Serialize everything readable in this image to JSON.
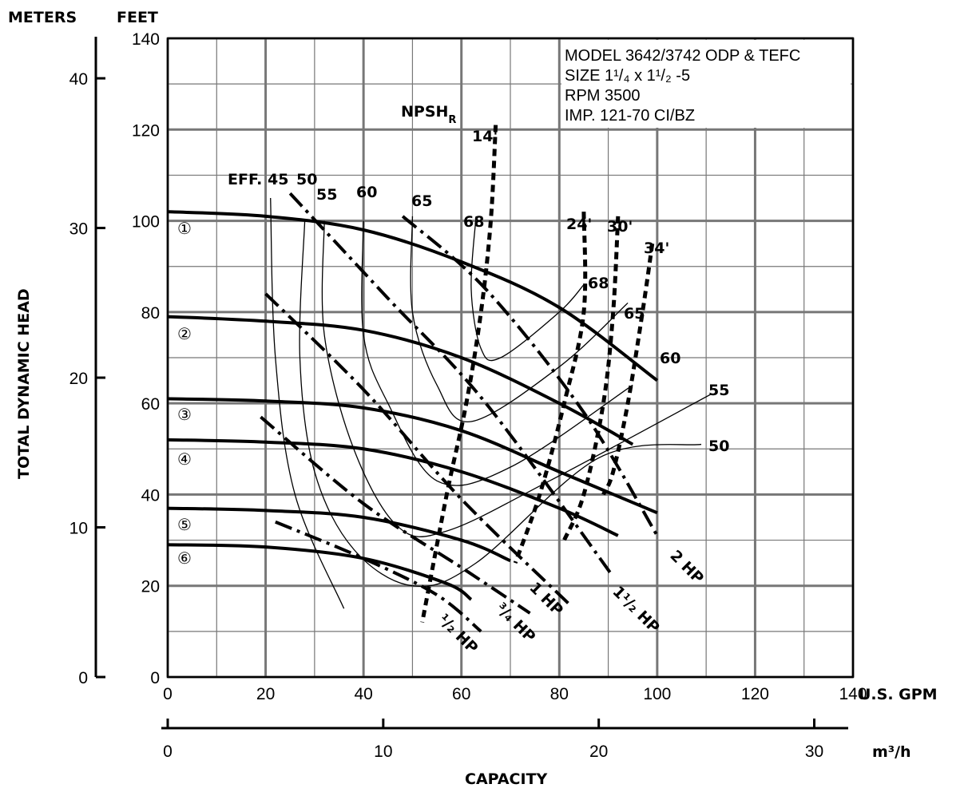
{
  "header": {
    "meters_label": "METERS",
    "feet_label": "FEET",
    "y_axis_title": "TOTAL DYNAMIC HEAD",
    "x_axis_title": "CAPACITY",
    "gpm_unit": "U.S. GPM",
    "m3h_unit": "m³/h"
  },
  "info_box": {
    "line1": "MODEL 3642/3742 ODP & TEFC",
    "line2": "SIZE 1¹/₄ x 1¹/₂ -5",
    "line3": "RPM 3500",
    "line4": "IMP. 121-70 CI/BZ"
  },
  "chart_data": {
    "type": "line",
    "title": "MODEL 3642/3742 ODP & TEFC",
    "xlabel": "CAPACITY",
    "ylabel": "TOTAL DYNAMIC HEAD",
    "x_unit": "U.S. GPM",
    "y_unit": "FEET",
    "xlim": [
      0,
      140
    ],
    "ylim": [
      0,
      140
    ],
    "grid": true,
    "x_ticks": [
      "0",
      "20",
      "40",
      "60",
      "80",
      "100",
      "120",
      "140"
    ],
    "y_ticks": [
      "0",
      "20",
      "40",
      "60",
      "80",
      "100",
      "120",
      "140"
    ],
    "meters_ticks": [
      "0",
      "10",
      "20",
      "30",
      "40"
    ],
    "m3h_ticks": [
      "0",
      "10",
      "20",
      "30"
    ],
    "impeller_curves": [
      {
        "name": "①",
        "x": [
          0,
          20,
          40,
          60,
          80,
          100
        ],
        "y": [
          102,
          101,
          98,
          91,
          81,
          65
        ]
      },
      {
        "name": "②",
        "x": [
          0,
          20,
          40,
          60,
          80,
          95
        ],
        "y": [
          79,
          78,
          76,
          70,
          60,
          51
        ]
      },
      {
        "name": "③",
        "x": [
          0,
          20,
          40,
          60,
          80,
          100
        ],
        "y": [
          61,
          60.5,
          59,
          54,
          45,
          36
        ]
      },
      {
        "name": "④",
        "x": [
          0,
          20,
          40,
          60,
          80,
          92
        ],
        "y": [
          52,
          51.5,
          50,
          45,
          37,
          31
        ]
      },
      {
        "name": "⑤",
        "x": [
          0,
          20,
          40,
          60,
          70
        ],
        "y": [
          37,
          36.5,
          35,
          30,
          25.5
        ]
      },
      {
        "name": "⑥",
        "x": [
          0,
          20,
          40,
          57,
          62
        ],
        "y": [
          29,
          28.5,
          26,
          20.5,
          17
        ]
      }
    ],
    "npshr_curves": [
      {
        "name": "14'",
        "x": [
          67,
          66,
          64,
          61,
          57,
          52
        ],
        "y": [
          121,
          100,
          80,
          60,
          40,
          12
        ]
      },
      {
        "name": "24'",
        "x": [
          85,
          85,
          81,
          76,
          71
        ],
        "y": [
          102,
          80,
          60,
          40,
          25
        ]
      },
      {
        "name": "30'",
        "x": [
          92,
          91,
          89,
          85,
          81
        ],
        "y": [
          101,
          80,
          60,
          40,
          30
        ]
      },
      {
        "name": "34'",
        "x": [
          99,
          97,
          94,
          91,
          89
        ],
        "y": [
          95,
          80,
          60,
          45,
          40
        ]
      }
    ],
    "hp_curves": [
      {
        "name": "1/2 HP",
        "x": [
          22,
          40,
          55,
          64
        ],
        "y": [
          34,
          26,
          18,
          10
        ]
      },
      {
        "name": "3/4 HP",
        "x": [
          19,
          40,
          60,
          74
        ],
        "y": [
          57,
          38,
          24,
          14
        ]
      },
      {
        "name": "1 HP",
        "x": [
          20,
          40,
          60,
          82
        ],
        "y": [
          84,
          63,
          39,
          16
        ]
      },
      {
        "name": "1 1/2 HP",
        "x": [
          25,
          45,
          65,
          91
        ],
        "y": [
          106,
          83,
          60,
          22
        ]
      },
      {
        "name": "2 HP",
        "x": [
          48,
          65,
          85,
          100
        ],
        "y": [
          101,
          85,
          58,
          31
        ]
      }
    ],
    "efficiency_labels": [
      "EFF. 45",
      "50",
      "55",
      "60",
      "65",
      "68",
      "68",
      "65",
      "60",
      "55",
      "50"
    ],
    "npsh_label": "NPSH",
    "npsh_sub": "R",
    "impeller_labels": [
      "①",
      "②",
      "③",
      "④",
      "⑤",
      "⑥"
    ],
    "npsh_value_labels": [
      "14'",
      "24'",
      "30'",
      "34'"
    ],
    "hp_labels": [
      "¹/₂ HP",
      "³/₄ HP",
      "1 HP",
      "1¹/₂ HP",
      "2 HP"
    ]
  }
}
